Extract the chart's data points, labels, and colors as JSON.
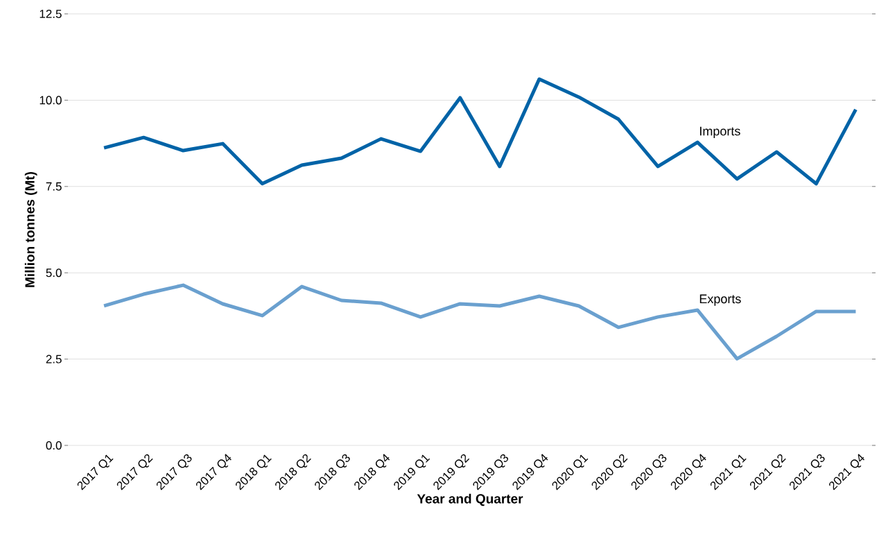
{
  "chart_data": {
    "type": "line",
    "xlabel": "Year and Quarter",
    "ylabel": "Million tonnes (Mt)",
    "categories": [
      "2017 Q1",
      "2017 Q2",
      "2017 Q3",
      "2017 Q4",
      "2018 Q1",
      "2018 Q2",
      "2018 Q3",
      "2018 Q4",
      "2019 Q1",
      "2019 Q2",
      "2019 Q3",
      "2019 Q4",
      "2020 Q1",
      "2020 Q2",
      "2020 Q3",
      "2020 Q4",
      "2021 Q1",
      "2021 Q2",
      "2021 Q3",
      "2021 Q4"
    ],
    "series": [
      {
        "name": "Imports",
        "color": "#0063a7",
        "values": [
          8.62,
          8.92,
          8.54,
          8.74,
          7.58,
          8.12,
          8.32,
          8.88,
          8.52,
          10.07,
          8.08,
          10.61,
          10.09,
          9.45,
          8.08,
          8.78,
          7.72,
          8.5,
          7.58,
          9.73
        ]
      },
      {
        "name": "Exports",
        "color": "#6aa0cf",
        "values": [
          4.04,
          4.38,
          4.64,
          4.1,
          3.76,
          4.6,
          4.2,
          4.12,
          3.72,
          4.1,
          4.04,
          4.32,
          4.04,
          3.42,
          3.72,
          3.92,
          2.51,
          3.16,
          3.88,
          3.88
        ]
      }
    ],
    "ylim": [
      0,
      12.5
    ],
    "yticks": [
      {
        "value": 0,
        "label": "0.0"
      },
      2.5,
      {
        "value": 5,
        "label": "5.0"
      },
      7.5,
      {
        "value": 10,
        "label": "10.0"
      },
      12.5
    ],
    "grid": "y",
    "legend": false,
    "line_style": "solid",
    "marker": "none"
  }
}
